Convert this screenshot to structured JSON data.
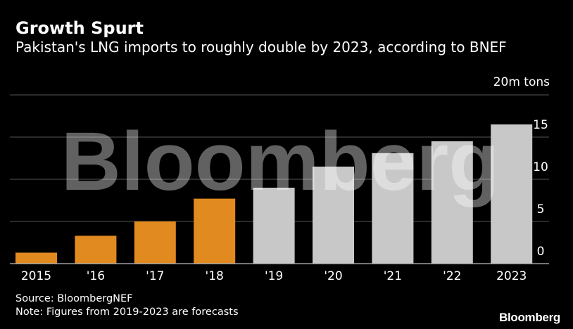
{
  "header": {
    "title": "Growth Spurt",
    "subtitle": "Pakistan's LNG imports to roughly double by 2023, according to BNEF"
  },
  "footer": {
    "source": "Source: BloombergNEF",
    "note": "Note: Figures from 2019-2023 are forecasts",
    "logo": "Bloomberg"
  },
  "watermark": "Bloomberg",
  "colors": {
    "actual": "#e08a20",
    "forecast": "#c8c8c8",
    "grid": "#555555",
    "background": "#000000"
  },
  "chart_data": {
    "type": "bar",
    "title": "Growth Spurt",
    "subtitle": "Pakistan's LNG imports to roughly double by 2023, according to BNEF",
    "unit_label": "20m tons",
    "xlabel": "",
    "ylabel": "",
    "ylim": [
      0,
      20
    ],
    "yticks": [
      0,
      5,
      10,
      15
    ],
    "grid": true,
    "categories": [
      "2015",
      "'16",
      "'17",
      "'18",
      "'19",
      "'20",
      "'21",
      "'22",
      "2023"
    ],
    "values": [
      1.3,
      3.3,
      5.0,
      7.7,
      9.0,
      11.5,
      13.1,
      14.5,
      16.5
    ],
    "series_type": [
      "actual",
      "actual",
      "actual",
      "actual",
      "forecast",
      "forecast",
      "forecast",
      "forecast",
      "forecast"
    ]
  }
}
